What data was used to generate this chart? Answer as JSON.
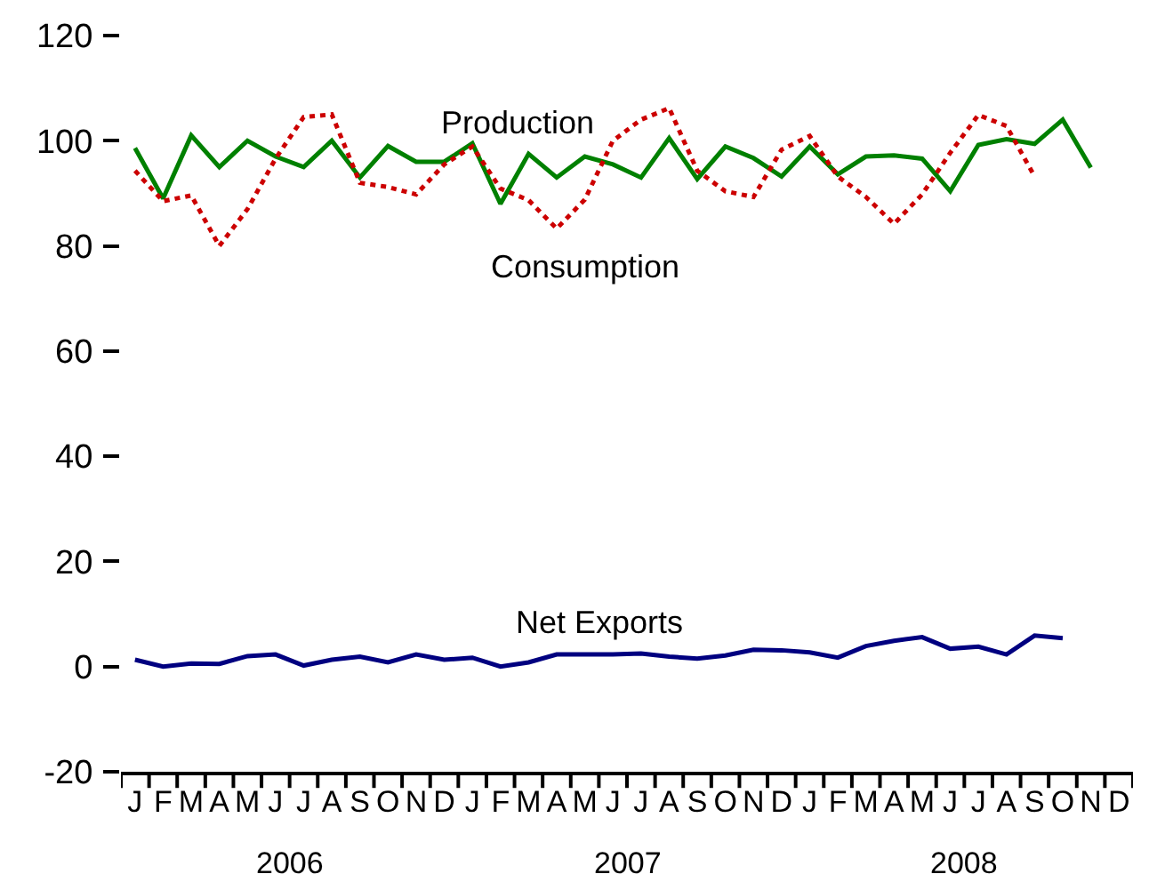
{
  "chart_data": {
    "type": "line",
    "categories": [
      "J",
      "F",
      "M",
      "A",
      "M",
      "J",
      "J",
      "A",
      "S",
      "O",
      "N",
      "D",
      "J",
      "F",
      "M",
      "A",
      "M",
      "J",
      "J",
      "A",
      "S",
      "O",
      "N",
      "D",
      "J",
      "F",
      "M",
      "A",
      "M",
      "J",
      "J",
      "A",
      "S",
      "O",
      "N",
      "D"
    ],
    "series": [
      {
        "name": "Production",
        "color": "#008000",
        "line_style": "solid",
        "values": [
          98.6,
          89,
          101,
          95,
          100,
          97,
          95,
          100,
          93,
          99,
          96,
          96,
          99.5,
          88,
          97.5,
          93,
          97,
          95.5,
          93,
          100.5,
          92.7,
          98.9,
          96.7,
          93.2,
          98.9,
          93.6,
          97,
          97.2,
          96.6,
          90.4,
          99.2,
          100.3,
          99.4,
          104,
          94.9,
          null
        ]
      },
      {
        "name": "Consumption",
        "color": "#cc0000",
        "line_style": "dotted",
        "values": [
          94.3,
          88.5,
          89.6,
          80,
          87,
          96.6,
          104.5,
          105,
          92,
          91.2,
          89.8,
          95.5,
          98.9,
          90.9,
          88.7,
          83.3,
          88.8,
          100,
          104,
          106.2,
          94.3,
          90.4,
          89.3,
          98.3,
          100.9,
          93.2,
          89.3,
          84.2,
          89.8,
          97.7,
          104.9,
          102.8,
          93.2,
          null,
          null,
          null
        ]
      },
      {
        "name": "Net Exports",
        "color": "#000080",
        "line_style": "solid",
        "values": [
          1.3,
          0,
          0.6,
          0.5,
          2,
          2.3,
          0.2,
          1.3,
          1.9,
          0.8,
          2.3,
          1.3,
          1.7,
          0,
          0.8,
          2.3,
          2.3,
          2.3,
          2.5,
          1.9,
          1.5,
          2.1,
          3.2,
          3.1,
          2.7,
          1.7,
          3.9,
          4.9,
          5.6,
          3.4,
          3.8,
          2.3,
          5.9,
          5.4,
          null,
          null
        ]
      }
    ],
    "annotations": [
      "2006",
      "2007",
      "2008"
    ],
    "ylim": [
      -20,
      120
    ],
    "yticks": [
      -20,
      0,
      20,
      40,
      60,
      80,
      100,
      120
    ],
    "grid": false,
    "legend": false,
    "marker": "none"
  }
}
